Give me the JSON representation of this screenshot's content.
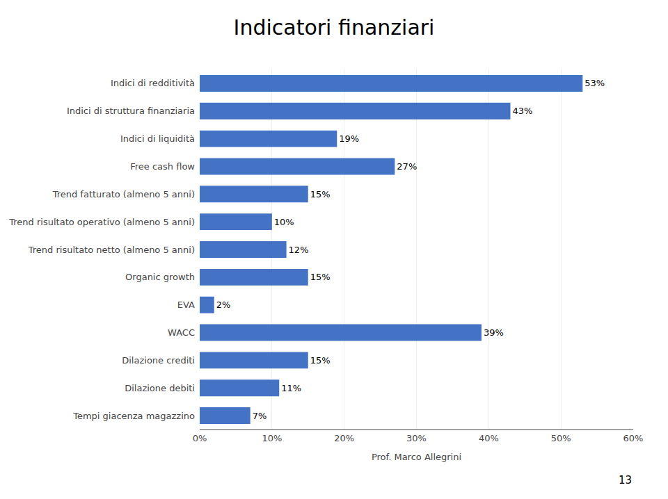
{
  "chart_data": {
    "type": "bar",
    "orientation": "horizontal",
    "title": "Indicatori finanziari",
    "xlabel": "Prof. Marco Allegrini",
    "annotations": [
      "13"
    ],
    "categories": [
      "Tempi giacenza magazzino",
      "Dilazione debiti",
      "Dilazione crediti",
      "WACC",
      "EVA",
      "Organic growth",
      "Trend risultato netto (almeno 5 anni)",
      "Trend risultato operativo (almeno 5 anni)",
      "Trend fatturato (almeno 5 anni)",
      "Free cash flow",
      "Indici di liquidità",
      "Indici di struttura finanziaria",
      "Indici di redditività"
    ],
    "values": [
      7,
      11,
      15,
      39,
      2,
      15,
      12,
      10,
      15,
      27,
      19,
      43,
      53
    ],
    "value_labels": [
      "7%",
      "11%",
      "15%",
      "39%",
      "2%",
      "15%",
      "12%",
      "10%",
      "15%",
      "27%",
      "19%",
      "43%",
      "53%"
    ],
    "data_labels": true,
    "color": "#4472C4",
    "xlim": [
      0,
      60
    ],
    "xticks": [
      {
        "value": 0,
        "label": "0%"
      },
      {
        "value": 10,
        "label": "10%"
      },
      {
        "value": 20,
        "label": "20%"
      },
      {
        "value": 30,
        "label": "30%"
      },
      {
        "value": 40,
        "label": "40%"
      },
      {
        "value": 50,
        "label": "50%"
      },
      {
        "value": 60,
        "label": "60%"
      }
    ],
    "grid": true
  }
}
